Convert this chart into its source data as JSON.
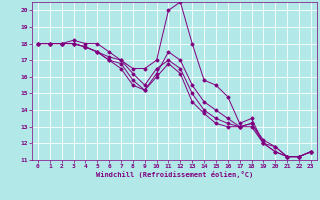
{
  "xlabel": "Windchill (Refroidissement éolien,°C)",
  "ylabel": "",
  "bg_color": "#b2e8e8",
  "grid_color": "#ffffff",
  "line_color": "#800080",
  "xlim": [
    -0.5,
    23.5
  ],
  "ylim": [
    11,
    20.5
  ],
  "xticks": [
    0,
    1,
    2,
    3,
    4,
    5,
    6,
    7,
    8,
    9,
    10,
    11,
    12,
    13,
    14,
    15,
    16,
    17,
    18,
    19,
    20,
    21,
    22,
    23
  ],
  "yticks": [
    11,
    12,
    13,
    14,
    15,
    16,
    17,
    18,
    19,
    20
  ],
  "series": [
    [
      18,
      18,
      18,
      18.2,
      18,
      18,
      17.5,
      17,
      16.5,
      16.5,
      17,
      20,
      20.5,
      18,
      15.8,
      15.5,
      14.8,
      13.2,
      13.5,
      12,
      11.8,
      11.2,
      11.2,
      11.5
    ],
    [
      18,
      18,
      18,
      18,
      17.8,
      17.5,
      17,
      16.5,
      15.5,
      15.2,
      16.2,
      17.5,
      17,
      15.5,
      14.5,
      14,
      13.5,
      13,
      13,
      12,
      11.5,
      11.2,
      11.2,
      11.5
    ],
    [
      18,
      18,
      18,
      18,
      17.8,
      17.5,
      17.2,
      17,
      16.2,
      15.5,
      16.5,
      17,
      16.5,
      15,
      14,
      13.5,
      13.2,
      13,
      13.2,
      12.2,
      11.8,
      11.2,
      11.2,
      11.5
    ],
    [
      18,
      18,
      18,
      18,
      17.8,
      17.5,
      17.0,
      16.8,
      15.8,
      15.2,
      16.0,
      16.8,
      16.2,
      14.5,
      13.8,
      13.2,
      13.0,
      13.0,
      13.2,
      12.0,
      11.5,
      11.2,
      11.2,
      11.5
    ]
  ]
}
